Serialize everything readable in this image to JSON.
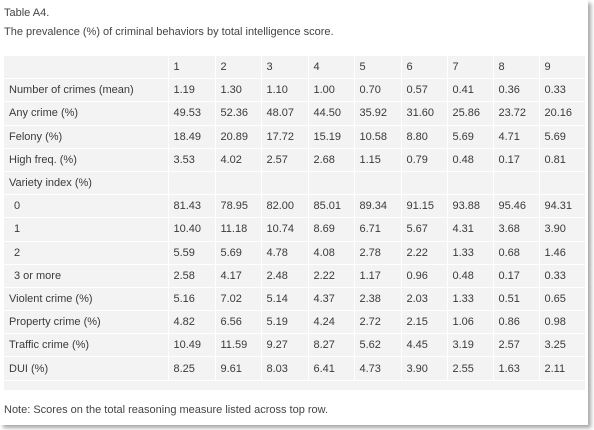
{
  "table_label": "Table A4.",
  "table_title": "The prevalence (%) of criminal behaviors by total intelligence score.",
  "columns": [
    "",
    "1",
    "2",
    "3",
    "4",
    "5",
    "6",
    "7",
    "8",
    "9"
  ],
  "rows": [
    {
      "label": "Number of crimes (mean)",
      "indent": false,
      "values": [
        "1.19",
        "1.30",
        "1.10",
        "1.00",
        "0.70",
        "0.57",
        "0.41",
        "0.36",
        "0.33"
      ]
    },
    {
      "label": "Any crime (%)",
      "indent": false,
      "values": [
        "49.53",
        "52.36",
        "48.07",
        "44.50",
        "35.92",
        "31.60",
        "25.86",
        "23.72",
        "20.16"
      ]
    },
    {
      "label": "Felony (%)",
      "indent": false,
      "values": [
        "18.49",
        "20.89",
        "17.72",
        "15.19",
        "10.58",
        "8.80",
        "5.69",
        "4.71",
        "5.69"
      ]
    },
    {
      "label": "High freq. (%)",
      "indent": false,
      "values": [
        "3.53",
        "4.02",
        "2.57",
        "2.68",
        "1.15",
        "0.79",
        "0.48",
        "0.17",
        "0.81"
      ]
    },
    {
      "label": "Variety index (%)",
      "indent": false,
      "values": [
        "",
        "",
        "",
        "",
        "",
        "",
        "",
        "",
        ""
      ]
    },
    {
      "label": "0",
      "indent": true,
      "values": [
        "81.43",
        "78.95",
        "82.00",
        "85.01",
        "89.34",
        "91.15",
        "93.88",
        "95.46",
        "94.31"
      ]
    },
    {
      "label": "1",
      "indent": true,
      "values": [
        "10.40",
        "11.18",
        "10.74",
        "8.69",
        "6.71",
        "5.67",
        "4.31",
        "3.68",
        "3.90"
      ]
    },
    {
      "label": "2",
      "indent": true,
      "values": [
        "5.59",
        "5.69",
        "4.78",
        "4.08",
        "2.78",
        "2.22",
        "1.33",
        "0.68",
        "1.46"
      ]
    },
    {
      "label": "3 or more",
      "indent": true,
      "values": [
        "2.58",
        "4.17",
        "2.48",
        "2.22",
        "1.17",
        "0.96",
        "0.48",
        "0.17",
        "0.33"
      ]
    },
    {
      "label": "Violent crime (%)",
      "indent": false,
      "values": [
        "5.16",
        "7.02",
        "5.14",
        "4.37",
        "2.38",
        "2.03",
        "1.33",
        "0.51",
        "0.65"
      ]
    },
    {
      "label": "Property crime (%)",
      "indent": false,
      "values": [
        "4.82",
        "6.56",
        "5.19",
        "4.24",
        "2.72",
        "2.15",
        "1.06",
        "0.86",
        "0.98"
      ]
    },
    {
      "label": "Traffic crime (%)",
      "indent": false,
      "values": [
        "10.49",
        "11.59",
        "9.27",
        "8.27",
        "5.62",
        "4.45",
        "3.19",
        "2.57",
        "3.25"
      ]
    },
    {
      "label": "DUI (%)",
      "indent": false,
      "values": [
        "8.25",
        "9.61",
        "8.03",
        "6.41",
        "4.73",
        "3.90",
        "2.55",
        "1.63",
        "2.11"
      ]
    }
  ],
  "note": "Note: Scores on the total reasoning measure listed across top row."
}
